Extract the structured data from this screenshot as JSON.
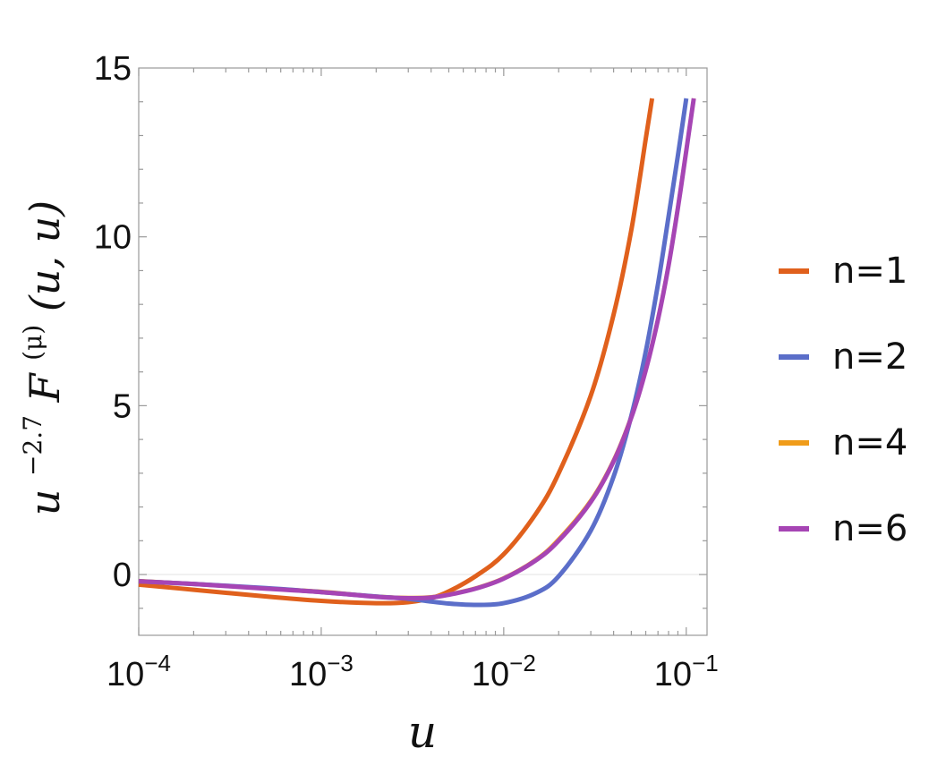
{
  "chart_data": {
    "type": "line",
    "xscale": "log",
    "xlim": [
      0.0001,
      0.13
    ],
    "ylim": [
      -1.8,
      15
    ],
    "xlabel": "u",
    "ylabel_parts": {
      "base": "u",
      "exponent": "−2.7",
      "fn": "F",
      "superscript": "(μ)",
      "args": "(u, u)"
    },
    "x_ticks": [
      {
        "value": 0.0001,
        "mantissa": "10",
        "exponent": "−4"
      },
      {
        "value": 0.001,
        "mantissa": "10",
        "exponent": "−3"
      },
      {
        "value": 0.01,
        "mantissa": "10",
        "exponent": "−2"
      },
      {
        "value": 0.1,
        "mantissa": "10",
        "exponent": "−1"
      }
    ],
    "y_ticks": [
      {
        "value": 0,
        "label": "0"
      },
      {
        "value": 5,
        "label": "5"
      },
      {
        "value": 10,
        "label": "10"
      },
      {
        "value": 15,
        "label": "15"
      }
    ],
    "grid": false,
    "legend_position": "right",
    "series": [
      {
        "name": "n=1",
        "color": "#e0601c",
        "x": [
          0.0001,
          0.0002,
          0.0005,
          0.001,
          0.002,
          0.003,
          0.004,
          0.005,
          0.007,
          0.01,
          0.015,
          0.02,
          0.03,
          0.04,
          0.05,
          0.06,
          0.065
        ],
        "y": [
          -0.3,
          -0.45,
          -0.65,
          -0.78,
          -0.85,
          -0.82,
          -0.7,
          -0.5,
          -0.05,
          0.6,
          1.8,
          3.0,
          5.3,
          7.7,
          10.2,
          12.9,
          14.1
        ]
      },
      {
        "name": "n=2",
        "color": "#5b6ec9",
        "x": [
          0.0001,
          0.0002,
          0.0005,
          0.001,
          0.002,
          0.003,
          0.004,
          0.005,
          0.007,
          0.01,
          0.015,
          0.02,
          0.03,
          0.04,
          0.05,
          0.06,
          0.07,
          0.08,
          0.09,
          0.1
        ],
        "y": [
          -0.2,
          -0.28,
          -0.4,
          -0.52,
          -0.65,
          -0.72,
          -0.8,
          -0.86,
          -0.9,
          -0.85,
          -0.55,
          -0.05,
          1.3,
          2.9,
          4.7,
          6.6,
          8.6,
          10.6,
          12.4,
          14.1
        ]
      },
      {
        "name": "n=4",
        "color": "#f09c1a",
        "x": [
          0.0001,
          0.0002,
          0.0005,
          0.001,
          0.002,
          0.003,
          0.004,
          0.005,
          0.007,
          0.01,
          0.015,
          0.02,
          0.03,
          0.04,
          0.05,
          0.06,
          0.07,
          0.08,
          0.09,
          0.1,
          0.11
        ],
        "y": [
          -0.18,
          -0.27,
          -0.4,
          -0.5,
          -0.64,
          -0.68,
          -0.66,
          -0.58,
          -0.4,
          -0.1,
          0.45,
          1.05,
          2.2,
          3.4,
          4.7,
          6.1,
          7.6,
          9.2,
          10.9,
          12.6,
          14.1
        ]
      },
      {
        "name": "n=6",
        "color": "#a645b4",
        "x": [
          0.0001,
          0.0002,
          0.0005,
          0.001,
          0.002,
          0.003,
          0.004,
          0.005,
          0.007,
          0.01,
          0.015,
          0.02,
          0.03,
          0.04,
          0.05,
          0.06,
          0.07,
          0.08,
          0.09,
          0.1,
          0.11
        ],
        "y": [
          -0.2,
          -0.28,
          -0.42,
          -0.52,
          -0.66,
          -0.7,
          -0.68,
          -0.6,
          -0.42,
          -0.12,
          0.42,
          1.0,
          2.15,
          3.35,
          4.65,
          6.05,
          7.55,
          9.15,
          10.85,
          12.55,
          14.1
        ]
      }
    ]
  }
}
